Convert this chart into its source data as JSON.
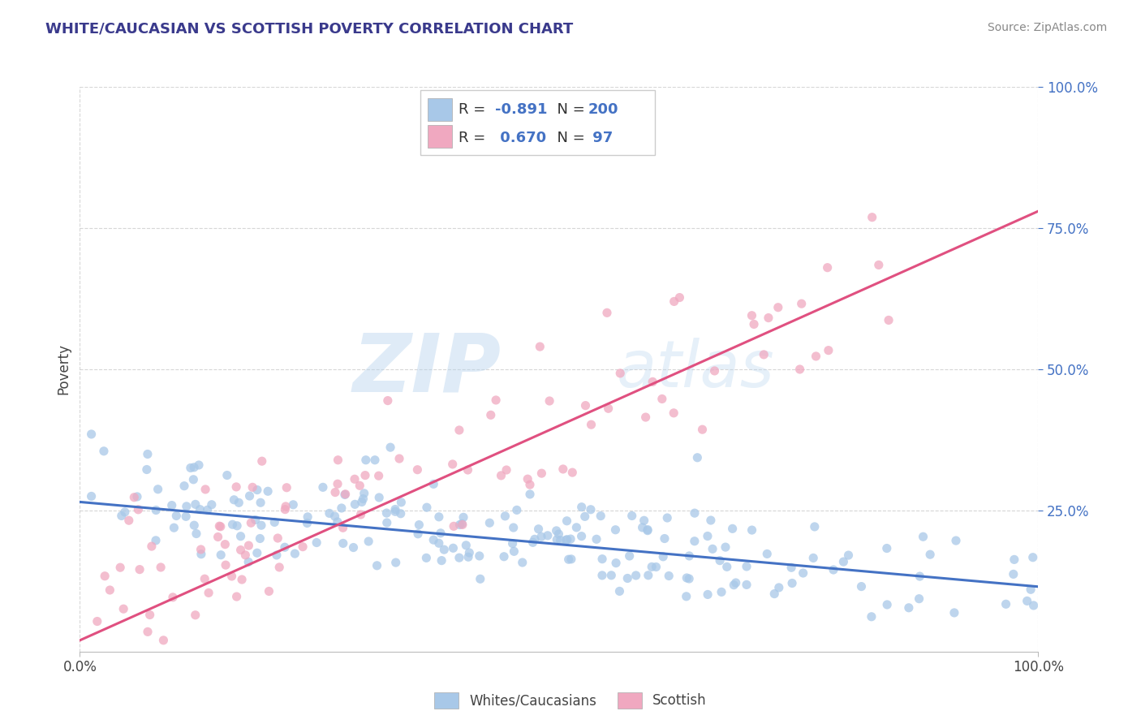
{
  "title": "WHITE/CAUCASIAN VS SCOTTISH POVERTY CORRELATION CHART",
  "source": "Source: ZipAtlas.com",
  "ylabel": "Poverty",
  "xlim": [
    0.0,
    1.0
  ],
  "ylim": [
    0.0,
    1.0
  ],
  "blue_color": "#a8c8e8",
  "pink_color": "#f0a8c0",
  "blue_line_color": "#4472c4",
  "pink_line_color": "#e05080",
  "blue_R": -0.891,
  "blue_N": 200,
  "pink_R": 0.67,
  "pink_N": 97,
  "watermark_zip": "ZIP",
  "watermark_atlas": "atlas",
  "legend_label_blue": "Whites/Caucasians",
  "legend_label_pink": "Scottish",
  "title_color": "#3a3a8c",
  "source_color": "#888888",
  "grid_color": "#cccccc",
  "background_color": "#ffffff",
  "y_tick_color": "#4472c4",
  "blue_trend_start": 0.265,
  "blue_trend_end": 0.115,
  "pink_trend_start": 0.02,
  "pink_trend_end": 0.78
}
